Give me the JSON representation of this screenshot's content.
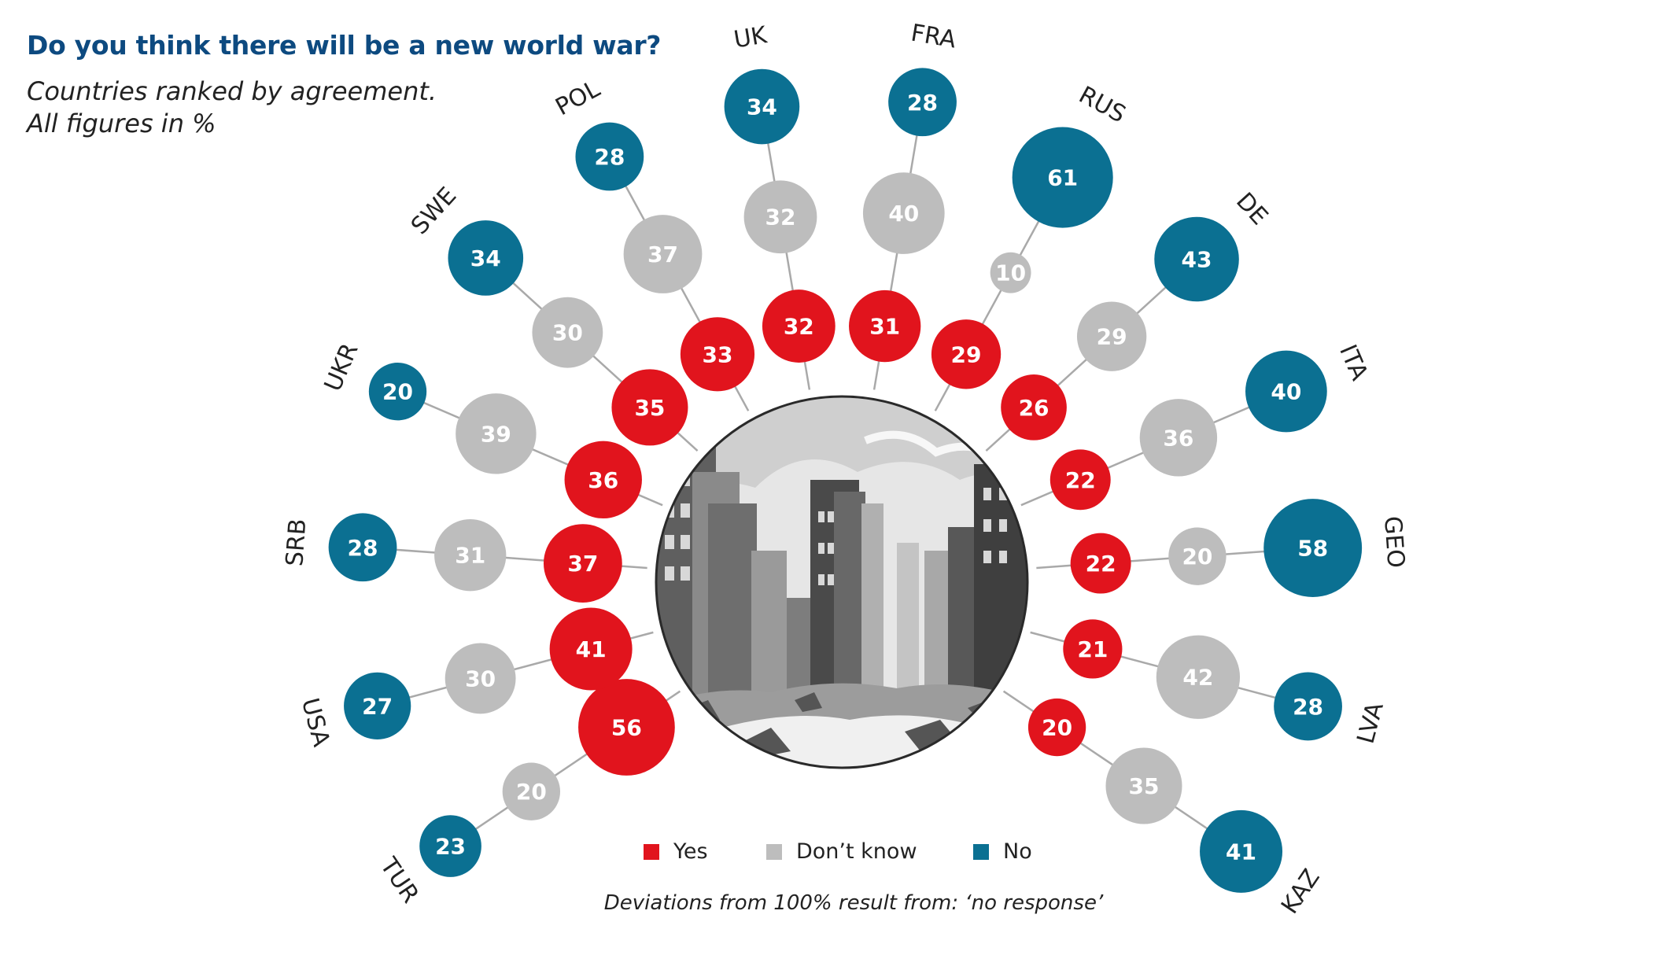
{
  "title": "Do you think there will be a new world war?",
  "subtitle_line1": "Countries ranked by agreement.",
  "subtitle_line2": "All figures in %",
  "footnote": "Deviations from 100% result from: ‘no response’",
  "colors": {
    "yes": "#e1141d",
    "dont_know": "#bdbdbd",
    "no": "#0b7092",
    "connector": "#a9a9a9"
  },
  "legend": {
    "yes": "Yes",
    "dont_know": "Don’t know",
    "no": "No"
  },
  "center_image": "destroyed-city-street-illustration",
  "chart_data": {
    "type": "radial bubble",
    "series": [
      {
        "name": "Yes",
        "key": "yes"
      },
      {
        "name": "Don’t know",
        "key": "dont_know"
      },
      {
        "name": "No",
        "key": "no"
      }
    ],
    "categories": [
      "TUR",
      "USA",
      "SRB",
      "UKR",
      "SWE",
      "POL",
      "UK",
      "FRA",
      "RUS",
      "DE",
      "ITA",
      "GEO",
      "LVA",
      "KAZ"
    ],
    "data": [
      {
        "country": "TUR",
        "yes": 56,
        "dont_know": 20,
        "no": 23
      },
      {
        "country": "USA",
        "yes": 41,
        "dont_know": 30,
        "no": 27
      },
      {
        "country": "SRB",
        "yes": 37,
        "dont_know": 31,
        "no": 28
      },
      {
        "country": "UKR",
        "yes": 36,
        "dont_know": 39,
        "no": 20
      },
      {
        "country": "SWE",
        "yes": 35,
        "dont_know": 30,
        "no": 34
      },
      {
        "country": "POL",
        "yes": 33,
        "dont_know": 37,
        "no": 28
      },
      {
        "country": "UK",
        "yes": 32,
        "dont_know": 32,
        "no": 34
      },
      {
        "country": "FRA",
        "yes": 31,
        "dont_know": 40,
        "no": 28
      },
      {
        "country": "RUS",
        "yes": 29,
        "dont_know": 10,
        "no": 61
      },
      {
        "country": "DE",
        "yes": 26,
        "dont_know": 29,
        "no": 43
      },
      {
        "country": "ITA",
        "yes": 22,
        "dont_know": 36,
        "no": 40
      },
      {
        "country": "GEO",
        "yes": 22,
        "dont_know": 20,
        "no": 58
      },
      {
        "country": "LVA",
        "yes": 21,
        "dont_know": 42,
        "no": 28
      },
      {
        "country": "KAZ",
        "yes": 20,
        "dont_know": 35,
        "no": 41
      }
    ]
  }
}
